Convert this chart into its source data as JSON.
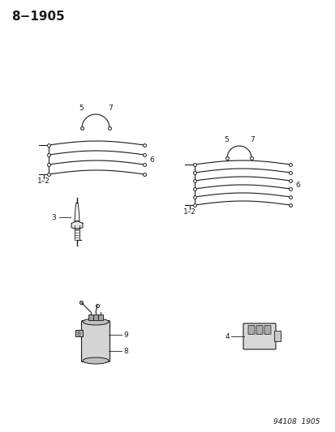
{
  "title": "8−1905",
  "footer": "94108  1905",
  "bg_color": "#ffffff",
  "line_color": "#1a1a1a",
  "title_fontsize": 11,
  "footer_fontsize": 6.5,
  "label_fontsize": 7
}
